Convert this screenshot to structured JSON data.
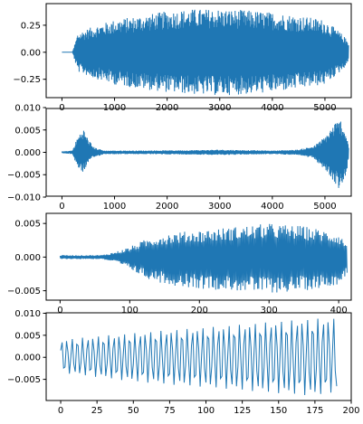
{
  "chart_data": [
    {
      "type": "line",
      "color": "#1f77b4",
      "xlim": [
        -300,
        5500
      ],
      "ylim": [
        -0.42,
        0.45
      ],
      "x_ticks": [
        0,
        1000,
        2000,
        3000,
        4000,
        5000
      ],
      "x_tick_labels": [
        "0",
        "1000",
        "2000",
        "3000",
        "4000",
        "5000"
      ],
      "y_ticks": [
        -0.25,
        0.0,
        0.25
      ],
      "y_tick_labels": [
        "−0.25",
        "0.00",
        "0.25"
      ],
      "series": [
        {
          "x": [
            0,
            200,
            300,
            400,
            600,
            1000,
            1500,
            2000,
            2500,
            3000,
            3500,
            4000,
            4500,
            5000,
            5300,
            5450
          ],
          "upper": [
            0.0,
            0.0,
            0.18,
            0.2,
            0.24,
            0.3,
            0.34,
            0.38,
            0.4,
            0.4,
            0.39,
            0.37,
            0.34,
            0.3,
            0.18,
            0.1
          ],
          "lower": [
            0.0,
            0.0,
            -0.18,
            -0.2,
            -0.24,
            -0.3,
            -0.34,
            -0.37,
            -0.39,
            -0.4,
            -0.39,
            -0.37,
            -0.34,
            -0.3,
            -0.18,
            -0.1
          ]
        }
      ]
    },
    {
      "type": "line",
      "color": "#1f77b4",
      "xlim": [
        -300,
        5500
      ],
      "ylim": [
        -0.0098,
        0.0098
      ],
      "x_ticks": [
        0,
        1000,
        2000,
        3000,
        4000,
        5000
      ],
      "x_tick_labels": [
        "0",
        "1000",
        "2000",
        "3000",
        "4000",
        "5000"
      ],
      "y_ticks": [
        -0.01,
        -0.005,
        0.0,
        0.005,
        0.01
      ],
      "y_tick_labels": [
        "−0.010",
        "−0.005",
        "0.000",
        "0.005",
        "0.010"
      ],
      "series": [
        {
          "x": [
            0,
            200,
            300,
            400,
            500,
            600,
            800,
            1500,
            2500,
            3000,
            4000,
            4500,
            4800,
            5000,
            5200,
            5300,
            5400,
            5450
          ],
          "upper": [
            0.0002,
            0.0004,
            0.0035,
            0.0055,
            0.003,
            0.0012,
            0.0004,
            0.0004,
            0.0005,
            0.0006,
            0.0004,
            0.0006,
            0.0015,
            0.0035,
            0.0068,
            0.0073,
            0.0045,
            0.0015
          ],
          "lower": [
            -0.0002,
            -0.0004,
            -0.0035,
            -0.0045,
            -0.0025,
            -0.0012,
            -0.0004,
            -0.0004,
            -0.0005,
            -0.0006,
            -0.0004,
            -0.0006,
            -0.0015,
            -0.004,
            -0.0072,
            -0.0086,
            -0.0055,
            -0.0015
          ]
        }
      ]
    },
    {
      "type": "line",
      "color": "#1f77b4",
      "xlim": [
        -20,
        418
      ],
      "ylim": [
        -0.0064,
        0.0065
      ],
      "x_ticks": [
        0,
        100,
        200,
        300,
        400
      ],
      "x_tick_labels": [
        "0",
        "100",
        "200",
        "300",
        "400"
      ],
      "y_ticks": [
        -0.005,
        0.0,
        0.005
      ],
      "y_tick_labels": [
        "−0.005",
        "0.000",
        "0.005"
      ],
      "series": [
        {
          "x": [
            0,
            30,
            60,
            80,
            100,
            120,
            140,
            160,
            200,
            250,
            300,
            350,
            380,
            400,
            412
          ],
          "upper": [
            0.0003,
            0.0003,
            0.0003,
            0.0008,
            0.0015,
            0.0025,
            0.0032,
            0.0036,
            0.004,
            0.0045,
            0.005,
            0.0046,
            0.004,
            0.0035,
            0.002
          ],
          "lower": [
            -0.0003,
            -0.0003,
            -0.0003,
            -0.0008,
            -0.0018,
            -0.003,
            -0.0037,
            -0.0042,
            -0.0047,
            -0.005,
            -0.0054,
            -0.005,
            -0.0045,
            -0.004,
            -0.0025
          ]
        }
      ]
    },
    {
      "type": "line",
      "color": "#1f77b4",
      "xlim": [
        -10,
        200
      ],
      "ylim": [
        -0.0098,
        0.0101
      ],
      "x_ticks": [
        0,
        25,
        50,
        75,
        100,
        125,
        150,
        175,
        200
      ],
      "x_tick_labels": [
        "0",
        "25",
        "50",
        "75",
        "100",
        "125",
        "150",
        "175",
        "200"
      ],
      "y_ticks": [
        -0.005,
        0.0,
        0.005,
        0.01
      ],
      "y_tick_labels": [
        "−0.005",
        "0.000",
        "0.005",
        "0.010"
      ],
      "series": [
        {
          "x": [
            0,
            25,
            50,
            75,
            100,
            125,
            150,
            175,
            190
          ],
          "upper": [
            0.004,
            0.0048,
            0.0055,
            0.0062,
            0.0068,
            0.0075,
            0.0082,
            0.0088,
            0.009
          ],
          "lower": [
            -0.0035,
            -0.0045,
            -0.0055,
            -0.0062,
            -0.0068,
            -0.0075,
            -0.0082,
            -0.0088,
            -0.0078
          ]
        }
      ]
    }
  ]
}
